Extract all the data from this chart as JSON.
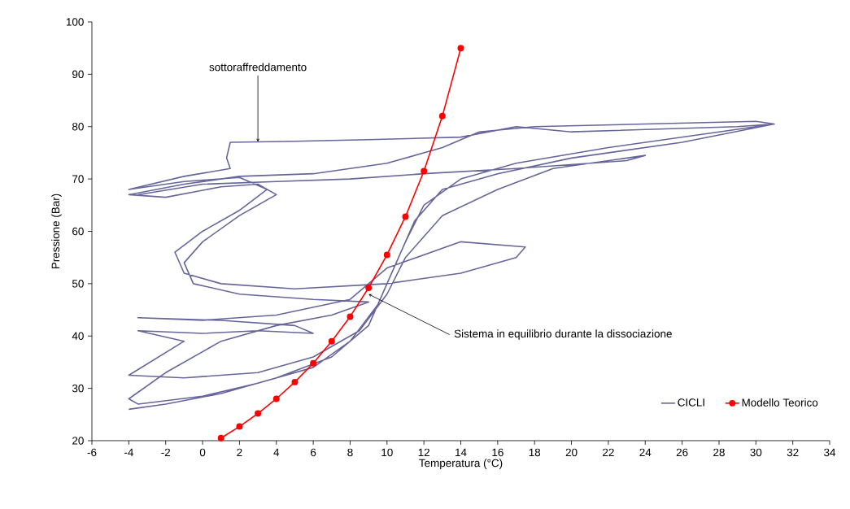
{
  "chart_data": {
    "type": "line",
    "xlabel": "Temperatura (°C)",
    "ylabel": "Pressione (Bar)",
    "xlim": [
      -6,
      34
    ],
    "ylim": [
      20,
      100
    ],
    "xticks": [
      -6,
      -4,
      -2,
      0,
      2,
      4,
      6,
      8,
      10,
      12,
      14,
      16,
      18,
      20,
      22,
      24,
      26,
      28,
      30,
      32,
      34
    ],
    "yticks": [
      20,
      30,
      40,
      50,
      60,
      70,
      80,
      90,
      100
    ],
    "legend": "bottom right",
    "line_style": "solid",
    "annotations": [
      {
        "text": "sottoraffreddamento",
        "x": 3,
        "y": 77.1
      },
      {
        "text": "Sistema in equilibrio durante la dissociazione",
        "x": 9,
        "y": 48
      }
    ],
    "series": [
      {
        "name": "CICLI",
        "color": "#66669a",
        "marker": "none",
        "x": [
          -4,
          -2,
          1,
          4,
          7,
          9,
          10,
          11,
          12,
          14,
          17,
          22,
          28,
          31,
          30,
          24,
          18,
          15,
          13,
          10,
          6,
          2,
          -1,
          -4,
          -2,
          1,
          3,
          4,
          2,
          0,
          -1,
          -0.5,
          2,
          6,
          9,
          7,
          4,
          1,
          -2,
          -4,
          -3.5,
          0,
          3,
          6,
          8,
          9.5,
          10.5,
          11.5,
          13,
          16,
          20,
          26,
          31,
          29,
          20,
          17,
          14,
          9,
          5,
          1.5,
          1.3,
          1.5,
          -1,
          -4,
          -1,
          2,
          3.5,
          2,
          0,
          -1.5,
          -1,
          1,
          5,
          10,
          14,
          17,
          17.5,
          14,
          10,
          8,
          4,
          0,
          -3.5,
          1,
          5,
          6,
          3,
          0,
          -3.5,
          -1,
          -4,
          -1,
          3,
          6,
          8.5,
          10,
          11,
          13,
          16,
          19,
          24,
          23,
          17,
          12,
          8,
          4,
          0,
          -3.5
        ],
        "values": [
          26,
          27,
          29,
          32,
          36,
          42,
          50,
          58,
          65,
          70,
          73,
          76,
          79,
          80.5,
          81,
          80.5,
          80,
          79,
          76,
          73,
          71,
          70.5,
          69,
          67,
          66.5,
          68.5,
          69,
          67,
          63,
          58,
          54,
          50,
          48,
          47,
          46.5,
          44,
          42,
          39,
          33,
          28,
          27,
          28.5,
          31,
          34,
          39,
          46,
          54,
          62,
          68,
          71,
          74,
          77,
          80.5,
          80,
          79,
          80,
          78,
          77.5,
          77.2,
          77,
          74,
          72,
          70.5,
          68,
          69.5,
          70.3,
          68,
          64,
          60,
          56,
          52,
          50,
          49,
          50,
          52,
          55,
          57,
          58,
          53,
          47,
          44,
          43,
          43.5,
          43,
          42,
          40.5,
          41,
          40.5,
          41,
          39,
          32.5,
          32,
          33,
          36,
          41,
          48,
          55,
          63,
          68,
          72,
          74.5,
          73.5,
          72,
          71,
          70,
          69.5,
          69,
          67
        ]
      },
      {
        "name": "Modello Teorico",
        "color": "#ff0000",
        "marker": "circle",
        "x": [
          1,
          2,
          3,
          4,
          5,
          6,
          7,
          8,
          9,
          10,
          11,
          12,
          13,
          14
        ],
        "values": [
          20.5,
          22.7,
          25.2,
          28,
          31.2,
          34.8,
          39,
          43.7,
          49.2,
          55.5,
          62.8,
          71.5,
          82,
          95
        ]
      }
    ]
  }
}
